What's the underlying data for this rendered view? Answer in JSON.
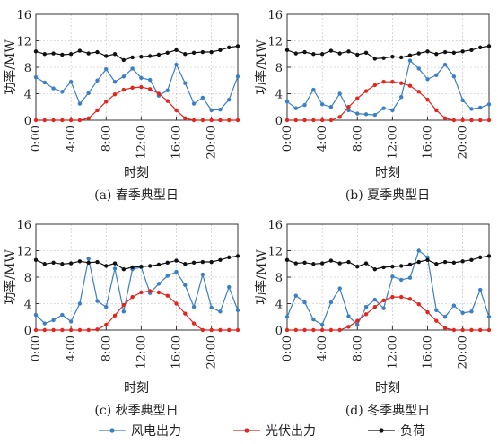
{
  "colors": {
    "wind": "#3b7fc4",
    "pv": "#e0261f",
    "load": "#111111",
    "axis": "#333333",
    "grid": "#bbbbbb"
  },
  "legend": {
    "wind": "风电出力",
    "pv": "光伏出力",
    "load": "负荷"
  },
  "chart_data": [
    {
      "type": "line",
      "title": "(a) 春季典型日",
      "xlabel": "时刻",
      "ylabel": "功率/MW",
      "xticks": [
        "0:00",
        "4:00",
        "8:00",
        "12:00",
        "16:00",
        "20:00"
      ],
      "xlim": [
        0,
        23
      ],
      "yticks": [
        0,
        4,
        8,
        12,
        16
      ],
      "ylim": [
        0,
        16
      ],
      "grid": true,
      "x": [
        0,
        1,
        2,
        3,
        4,
        5,
        6,
        7,
        8,
        9,
        10,
        11,
        12,
        13,
        14,
        15,
        16,
        17,
        18,
        19,
        20,
        21,
        22,
        23
      ],
      "series": [
        {
          "name": "风电出力",
          "key": "wind",
          "values": [
            6.5,
            5.7,
            4.8,
            4.3,
            5.8,
            2.5,
            4.1,
            6.0,
            7.7,
            5.8,
            6.6,
            7.8,
            6.4,
            6.1,
            3.7,
            4.5,
            8.4,
            5.6,
            2.5,
            3.4,
            1.5,
            1.6,
            3.1,
            6.6
          ]
        },
        {
          "name": "光伏出力",
          "key": "pv",
          "values": [
            0,
            0,
            0,
            0,
            0,
            0,
            0.3,
            1.5,
            2.8,
            3.9,
            4.6,
            4.9,
            5.0,
            4.7,
            4.0,
            2.9,
            1.5,
            0.3,
            0,
            0,
            0,
            0,
            0,
            0
          ]
        },
        {
          "name": "负荷",
          "key": "load",
          "values": [
            10.4,
            10.0,
            10.1,
            9.9,
            10.0,
            10.5,
            10.1,
            10.3,
            9.7,
            10.0,
            9.1,
            9.5,
            9.6,
            9.7,
            9.9,
            10.2,
            10.6,
            10.0,
            10.2,
            10.3,
            10.3,
            10.6,
            11.0,
            11.2
          ]
        }
      ]
    },
    {
      "type": "line",
      "title": "(b) 夏季典型日",
      "xlabel": "时刻",
      "ylabel": "功率/MW",
      "xticks": [
        "0:00",
        "4:00",
        "8:00",
        "12:00",
        "16:00",
        "20:00"
      ],
      "xlim": [
        0,
        23
      ],
      "yticks": [
        0,
        4,
        8,
        12,
        16
      ],
      "ylim": [
        0,
        16
      ],
      "grid": true,
      "x": [
        0,
        1,
        2,
        3,
        4,
        5,
        6,
        7,
        8,
        9,
        10,
        11,
        12,
        13,
        14,
        15,
        16,
        17,
        18,
        19,
        20,
        21,
        22,
        23
      ],
      "series": [
        {
          "name": "风电出力",
          "key": "wind",
          "values": [
            2.8,
            1.8,
            2.3,
            4.6,
            2.4,
            2.0,
            4.0,
            1.5,
            1.0,
            0.9,
            0.8,
            1.8,
            1.5,
            3.5,
            9.0,
            7.8,
            6.2,
            6.8,
            8.4,
            6.6,
            3.0,
            1.7,
            1.9,
            2.4
          ]
        },
        {
          "name": "光伏出力",
          "key": "pv",
          "values": [
            0,
            0,
            0,
            0,
            0,
            0,
            0.5,
            2.0,
            3.3,
            4.4,
            5.3,
            5.8,
            5.8,
            5.6,
            5.2,
            4.3,
            3.1,
            1.5,
            0.3,
            0,
            0,
            0,
            0,
            0
          ]
        },
        {
          "name": "负荷",
          "key": "load",
          "values": [
            10.6,
            10.1,
            10.3,
            10.0,
            10.0,
            10.5,
            10.1,
            10.4,
            9.9,
            10.2,
            9.3,
            9.4,
            9.6,
            9.5,
            9.8,
            10.1,
            10.4,
            10.0,
            10.3,
            10.2,
            10.4,
            10.6,
            11.0,
            11.2
          ]
        }
      ]
    },
    {
      "type": "line",
      "title": "(c) 秋季典型日",
      "xlabel": "时刻",
      "ylabel": "功率/MW",
      "xticks": [
        "0:00",
        "4:00",
        "8:00",
        "12:00",
        "16:00",
        "20:00"
      ],
      "xlim": [
        0,
        23
      ],
      "yticks": [
        0,
        4,
        8,
        12,
        16
      ],
      "ylim": [
        0,
        16
      ],
      "grid": true,
      "x": [
        0,
        1,
        2,
        3,
        4,
        5,
        6,
        7,
        8,
        9,
        10,
        11,
        12,
        13,
        14,
        15,
        16,
        17,
        18,
        19,
        20,
        21,
        22,
        23
      ],
      "series": [
        {
          "name": "风电出力",
          "key": "wind",
          "values": [
            2.3,
            1.0,
            1.5,
            2.3,
            1.3,
            4.0,
            10.8,
            4.4,
            3.5,
            9.3,
            2.8,
            9.2,
            9.5,
            5.6,
            7.0,
            8.2,
            8.8,
            6.8,
            3.5,
            8.4,
            3.4,
            2.8,
            6.5,
            3.0
          ]
        },
        {
          "name": "光伏出力",
          "key": "pv",
          "values": [
            0,
            0,
            0,
            0,
            0,
            0,
            0,
            0.1,
            0.8,
            2.2,
            3.8,
            5.0,
            5.7,
            5.9,
            5.7,
            5.2,
            4.0,
            2.5,
            1.0,
            0,
            0,
            0,
            0,
            0
          ]
        },
        {
          "name": "负荷",
          "key": "load",
          "values": [
            10.6,
            10.0,
            10.2,
            10.0,
            10.1,
            10.4,
            10.2,
            10.3,
            9.7,
            10.1,
            9.2,
            9.5,
            9.6,
            9.7,
            9.9,
            10.2,
            10.5,
            10.0,
            10.2,
            10.3,
            10.3,
            10.6,
            11.0,
            11.2
          ]
        }
      ]
    },
    {
      "type": "line",
      "title": "(d) 冬季典型日",
      "xlabel": "时刻",
      "ylabel": "功率/MW",
      "xticks": [
        "0:00",
        "4:00",
        "8:00",
        "12:00",
        "16:00",
        "20:00"
      ],
      "xlim": [
        0,
        23
      ],
      "yticks": [
        0,
        4,
        8,
        12,
        16
      ],
      "ylim": [
        0,
        16
      ],
      "grid": true,
      "x": [
        0,
        1,
        2,
        3,
        4,
        5,
        6,
        7,
        8,
        9,
        10,
        11,
        12,
        13,
        14,
        15,
        16,
        17,
        18,
        19,
        20,
        21,
        22,
        23
      ],
      "series": [
        {
          "name": "风电出力",
          "key": "wind",
          "values": [
            2.0,
            5.2,
            4.2,
            1.6,
            0.8,
            4.2,
            6.3,
            2.1,
            0.8,
            3.5,
            4.6,
            3.3,
            8.1,
            7.6,
            7.9,
            12.0,
            11.0,
            3.0,
            2.0,
            3.7,
            2.6,
            2.8,
            6.1,
            2.0
          ]
        },
        {
          "name": "光伏出力",
          "key": "pv",
          "values": [
            0,
            0,
            0,
            0,
            0,
            0,
            0,
            0.5,
            1.4,
            2.4,
            3.5,
            4.5,
            5.0,
            5.0,
            4.7,
            3.9,
            2.7,
            1.4,
            0.3,
            0,
            0,
            0,
            0,
            0
          ]
        },
        {
          "name": "负荷",
          "key": "load",
          "values": [
            10.6,
            10.1,
            10.2,
            10.0,
            10.1,
            10.5,
            10.1,
            10.3,
            9.6,
            10.1,
            9.2,
            9.5,
            9.6,
            9.7,
            9.9,
            10.3,
            10.6,
            10.0,
            10.3,
            10.2,
            10.4,
            10.6,
            11.0,
            11.2
          ]
        }
      ]
    }
  ]
}
